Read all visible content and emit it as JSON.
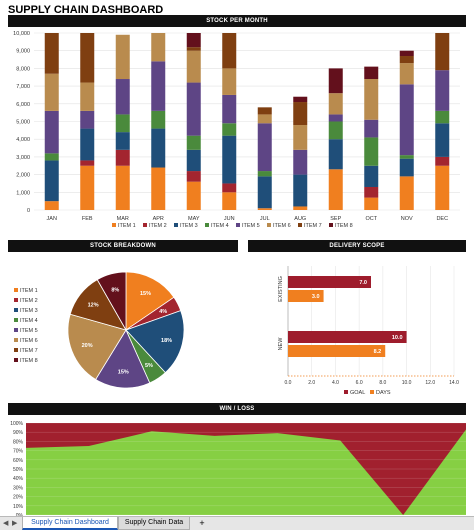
{
  "title": "SUPPLY CHAIN DASHBOARD",
  "colors": {
    "item1": "#f07f1f",
    "item2": "#a3252f",
    "item3": "#1f4e79",
    "item4": "#4a8a3c",
    "item5": "#5e4585",
    "item6": "#b98b4e",
    "item7": "#7f3f11",
    "item8": "#63101c",
    "goal": "#9e1c2c",
    "days": "#f07f1f",
    "win": "#86cf43",
    "loss": "#a1202e"
  },
  "tabs": {
    "active": "Supply Chain Dashboard",
    "other": "Supply Chain Data",
    "add": "+",
    "prev": "◀",
    "next": "▶"
  },
  "chart_data": [
    {
      "type": "bar",
      "stacked": true,
      "title": "STOCK PER MONTH",
      "categories": [
        "JAN",
        "FEB",
        "MAR",
        "APR",
        "MAY",
        "JUN",
        "JUL",
        "AUG",
        "SEP",
        "OCT",
        "NOV",
        "DEC"
      ],
      "ylim": [
        0,
        10000
      ],
      "yticks": [
        "0",
        "1,000",
        "2,000",
        "3,000",
        "4,000",
        "5,000",
        "6,000",
        "7,000",
        "8,000",
        "9,000",
        "10,000"
      ],
      "legend_position": "bottom",
      "series": [
        {
          "name": "ITEM 1",
          "values": [
            500,
            2500,
            2500,
            2400,
            1600,
            1000,
            100,
            200,
            2300,
            700,
            1900,
            2500
          ]
        },
        {
          "name": "ITEM 2",
          "values": [
            0,
            300,
            900,
            0,
            600,
            500,
            0,
            0,
            0,
            600,
            0,
            500
          ]
        },
        {
          "name": "ITEM 3",
          "values": [
            2300,
            1800,
            1000,
            2200,
            1200,
            2700,
            1800,
            1800,
            1700,
            1200,
            1000,
            1900
          ]
        },
        {
          "name": "ITEM 4",
          "values": [
            400,
            0,
            1000,
            1000,
            800,
            700,
            300,
            0,
            1000,
            1600,
            200,
            700
          ]
        },
        {
          "name": "ITEM 5",
          "values": [
            2400,
            1000,
            2000,
            2800,
            3000,
            1600,
            2700,
            1400,
            400,
            1000,
            4000,
            2300
          ]
        },
        {
          "name": "ITEM 6",
          "values": [
            2100,
            1600,
            2500,
            1600,
            1800,
            1500,
            500,
            1400,
            1200,
            2300,
            1200,
            0
          ]
        },
        {
          "name": "ITEM 7",
          "values": [
            2300,
            2800,
            0,
            0,
            200,
            2000,
            400,
            1300,
            0,
            0,
            400,
            2100
          ]
        },
        {
          "name": "ITEM 8",
          "values": [
            0,
            0,
            0,
            0,
            800,
            0,
            0,
            300,
            1400,
            700,
            300,
            0
          ]
        }
      ]
    },
    {
      "type": "pie",
      "title": "STOCK BREAKDOWN",
      "legend_position": "left",
      "labels": [
        "ITEM 1",
        "ITEM 2",
        "ITEM 3",
        "ITEM 4",
        "ITEM 5",
        "ITEM 6",
        "ITEM 7",
        "ITEM 8"
      ],
      "values": [
        15,
        4,
        18,
        5,
        15,
        20,
        12,
        8
      ],
      "data_labels": [
        "15%",
        "4%",
        "18%",
        "5%",
        "15%",
        "20%",
        "12%",
        "8%"
      ]
    },
    {
      "type": "bar",
      "orientation": "horizontal",
      "title": "DELIVERY SCOPE",
      "categories": [
        "EXISTING",
        "NEW"
      ],
      "xlim": [
        0,
        14
      ],
      "xticks": [
        "0.0",
        "2.0",
        "4.0",
        "6.0",
        "8.0",
        "10.0",
        "12.0",
        "14.0"
      ],
      "legend_position": "bottom",
      "series": [
        {
          "name": "GOAL",
          "values": [
            7.0,
            10.0
          ],
          "labels": [
            "7.0",
            "10.0"
          ]
        },
        {
          "name": "DAYS",
          "values": [
            3.0,
            8.2
          ],
          "labels": [
            "3.0",
            "8.2"
          ]
        }
      ]
    },
    {
      "type": "area",
      "title": "WIN / LOSS",
      "ylim": [
        0,
        100
      ],
      "yticks": [
        "0%",
        "10%",
        "20%",
        "30%",
        "40%",
        "50%",
        "60%",
        "70%",
        "80%",
        "90%",
        "100%"
      ],
      "series": [
        {
          "name": "WIN",
          "values": [
            73,
            75,
            91,
            86,
            89,
            81,
            0,
            93
          ]
        },
        {
          "name": "LOSS",
          "values": [
            27,
            25,
            9,
            14,
            11,
            19,
            100,
            7
          ]
        }
      ]
    }
  ]
}
